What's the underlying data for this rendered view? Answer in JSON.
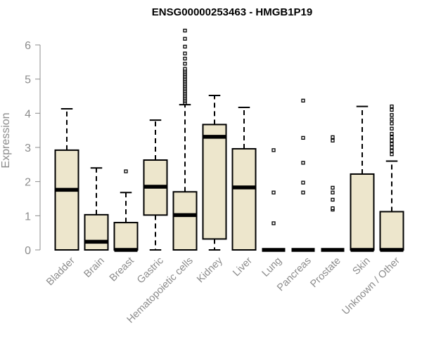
{
  "chart_data": {
    "type": "box",
    "title": "ENSG00000253463 - HMGB1P19",
    "xlabel": "",
    "ylabel": "Expression",
    "ylim": [
      0,
      6.5
    ],
    "yticks": [
      0,
      1,
      2,
      3,
      4,
      5,
      6
    ],
    "grid": false,
    "box_fill": "#ede6cc",
    "box_stroke": "#000000",
    "axis_color": "#8c8c8c",
    "categories": [
      "Bladder",
      "Brain",
      "Breast",
      "Gastric",
      "Hematopoietic cells",
      "Kidney",
      "Liver",
      "Lung",
      "Pancreas",
      "Prostate",
      "Skin",
      "Unknown / Other"
    ],
    "boxes": [
      {
        "category": "Bladder",
        "whisker_low": 0,
        "q1": 0,
        "median": 1.76,
        "q3": 2.92,
        "whisker_high": 4.13,
        "outliers": []
      },
      {
        "category": "Brain",
        "whisker_low": 0,
        "q1": 0,
        "median": 0.24,
        "q3": 1.03,
        "whisker_high": 2.4,
        "outliers": []
      },
      {
        "category": "Breast",
        "whisker_low": 0,
        "q1": 0,
        "median": 0,
        "q3": 0.8,
        "whisker_high": 1.68,
        "outliers": [
          2.3
        ]
      },
      {
        "category": "Gastric",
        "whisker_low": 0,
        "q1": 1.02,
        "median": 1.85,
        "q3": 2.63,
        "whisker_high": 3.8,
        "outliers": []
      },
      {
        "category": "Hematopoietic cells",
        "whisker_low": 0,
        "q1": 0,
        "median": 1.02,
        "q3": 1.7,
        "whisker_high": 4.25,
        "outliers": [
          4.3,
          4.35,
          4.4,
          4.45,
          4.5,
          4.55,
          4.6,
          4.65,
          4.7,
          4.75,
          4.8,
          4.85,
          4.9,
          4.95,
          5.0,
          5.05,
          5.1,
          5.15,
          5.2,
          5.25,
          5.3,
          5.45,
          5.6,
          5.75,
          5.95,
          6.18,
          6.42
        ]
      },
      {
        "category": "Kidney",
        "whisker_low": 0,
        "q1": 0.32,
        "median": 3.31,
        "q3": 3.67,
        "whisker_high": 4.52,
        "outliers": []
      },
      {
        "category": "Liver",
        "whisker_low": 0,
        "q1": 0,
        "median": 1.83,
        "q3": 2.96,
        "whisker_high": 4.17,
        "outliers": []
      },
      {
        "category": "Lung",
        "whisker_low": 0,
        "q1": 0,
        "median": 0,
        "q3": 0,
        "whisker_high": 0,
        "outliers": [
          0.78,
          1.68,
          2.92
        ]
      },
      {
        "category": "Pancreas",
        "whisker_low": 0,
        "q1": 0,
        "median": 0,
        "q3": 0,
        "whisker_high": 0,
        "outliers": [
          1.68,
          1.97,
          2.55,
          3.28,
          4.37
        ]
      },
      {
        "category": "Prostate",
        "whisker_low": 0,
        "q1": 0,
        "median": 0,
        "q3": 0,
        "whisker_high": 0,
        "outliers": [
          1.18,
          1.22,
          1.47,
          1.68,
          1.82,
          3.2,
          3.3
        ]
      },
      {
        "category": "Skin",
        "whisker_low": 0,
        "q1": 0,
        "median": 0,
        "q3": 2.22,
        "whisker_high": 4.2,
        "outliers": []
      },
      {
        "category": "Unknown / Other",
        "whisker_low": 0,
        "q1": 0,
        "median": 0,
        "q3": 1.12,
        "whisker_high": 2.6,
        "outliers": [
          2.8,
          2.9,
          3.0,
          3.1,
          3.2,
          3.3,
          3.4,
          3.55,
          3.7,
          3.82,
          3.95,
          4.1,
          4.2
        ]
      }
    ]
  }
}
